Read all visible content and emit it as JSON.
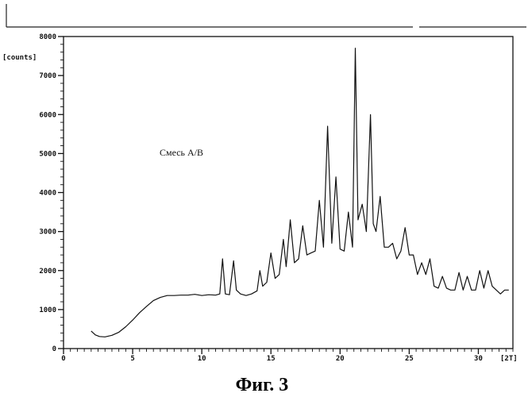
{
  "caption": "Фиг. 3",
  "chart_data": {
    "type": "line",
    "title": "",
    "annotation": "Смесь A/B",
    "ylabel": "[counts]",
    "xlabel": "[2T]",
    "xlim": [
      0,
      32.5
    ],
    "ylim": [
      0,
      8000
    ],
    "x_ticks": [
      "0",
      "5",
      "10",
      "15",
      "20",
      "25",
      "30"
    ],
    "y_ticks": [
      "0",
      "1000",
      "2000",
      "3000",
      "4000",
      "5000",
      "6000",
      "7000",
      "8000"
    ],
    "grid": false,
    "series": [
      {
        "x": [
          2.0,
          2.3,
          2.6,
          3.0,
          3.5,
          4.0,
          4.5,
          5.0,
          5.5,
          6.0,
          6.5,
          7.0,
          7.5,
          8.0,
          8.5,
          9.0,
          9.5,
          10.0,
          10.5,
          11.0,
          11.3,
          11.5,
          11.7,
          12.0,
          12.3,
          12.5,
          12.8,
          13.2,
          13.6,
          14.0,
          14.2,
          14.4,
          14.7,
          15.0,
          15.3,
          15.6,
          15.9,
          16.1,
          16.4,
          16.7,
          17.0,
          17.3,
          17.6,
          17.9,
          18.2,
          18.5,
          18.8,
          19.1,
          19.4,
          19.7,
          20.0,
          20.3,
          20.6,
          20.9,
          21.1,
          21.3,
          21.6,
          21.9,
          22.2,
          22.4,
          22.6,
          22.9,
          23.2,
          23.5,
          23.8,
          24.1,
          24.4,
          24.7,
          25.0,
          25.3,
          25.6,
          25.9,
          26.2,
          26.5,
          26.8,
          27.1,
          27.4,
          27.7,
          28.0,
          28.3,
          28.6,
          28.9,
          29.2,
          29.5,
          29.8,
          30.1,
          30.4,
          30.7,
          31.0,
          31.3,
          31.6,
          31.9,
          32.2
        ],
        "y": [
          450,
          350,
          310,
          300,
          340,
          420,
          560,
          730,
          920,
          1080,
          1230,
          1310,
          1360,
          1360,
          1370,
          1370,
          1390,
          1360,
          1380,
          1370,
          1400,
          2300,
          1400,
          1380,
          2250,
          1500,
          1400,
          1360,
          1400,
          1480,
          2000,
          1600,
          1700,
          2450,
          1800,
          1900,
          2800,
          2100,
          3300,
          2200,
          2300,
          3150,
          2400,
          2450,
          2500,
          3800,
          2600,
          5700,
          2700,
          4400,
          2550,
          2500,
          3500,
          2600,
          7700,
          3300,
          3700,
          3000,
          6000,
          3200,
          3000,
          3900,
          2600,
          2600,
          2700,
          2300,
          2500,
          3100,
          2400,
          2400,
          1900,
          2200,
          1900,
          2300,
          1600,
          1550,
          1850,
          1550,
          1500,
          1500,
          1950,
          1500,
          1850,
          1500,
          1500,
          2000,
          1550,
          2000,
          1600,
          1500,
          1400,
          1500,
          1500
        ]
      }
    ]
  }
}
